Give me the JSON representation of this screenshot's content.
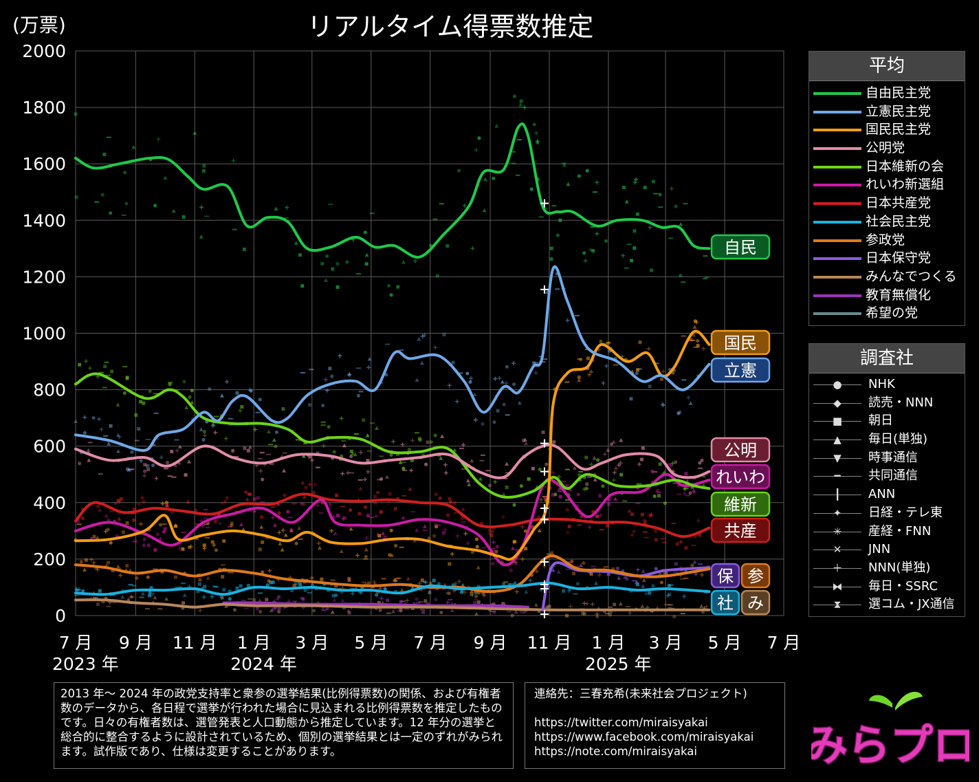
{
  "header": {
    "title": "リアルタイム得票数推定",
    "unit": "(万票)"
  },
  "chart_data": {
    "type": "line",
    "title": "リアルタイム得票数推定",
    "ylabel": "(万票)",
    "ylim": [
      0,
      2000
    ],
    "yticks": [
      0,
      200,
      400,
      600,
      800,
      1000,
      1200,
      1400,
      1600,
      1800,
      2000
    ],
    "xlim": [
      "2023-07-01",
      "2025-07-01"
    ],
    "xticks": [
      {
        "date": "2023-07-01",
        "label": "7 月",
        "year": "2023 年"
      },
      {
        "date": "2023-09-01",
        "label": "9 月"
      },
      {
        "date": "2023-11-01",
        "label": "11 月"
      },
      {
        "date": "2024-01-01",
        "label": "1 月",
        "year": "2024 年"
      },
      {
        "date": "2024-03-01",
        "label": "3 月"
      },
      {
        "date": "2024-05-01",
        "label": "5 月"
      },
      {
        "date": "2024-07-01",
        "label": "7 月"
      },
      {
        "date": "2024-09-01",
        "label": "9 月"
      },
      {
        "date": "2024-11-01",
        "label": "11 月"
      },
      {
        "date": "2025-01-01",
        "label": "1 月",
        "year": "2025 年"
      },
      {
        "date": "2025-03-01",
        "label": "3 月"
      },
      {
        "date": "2025-05-01",
        "label": "5 月"
      },
      {
        "date": "2025-07-01",
        "label": "7 月"
      }
    ],
    "grid": true,
    "legend_position": "right",
    "series": [
      {
        "name": "自由民主党",
        "tag": "自民",
        "color": "#1fc94a",
        "x": [
          "2023-07-01",
          "2023-07-20",
          "2023-08-15",
          "2023-09-15",
          "2023-10-05",
          "2023-10-25",
          "2023-11-10",
          "2023-12-05",
          "2023-12-25",
          "2024-01-15",
          "2024-02-05",
          "2024-02-25",
          "2024-03-20",
          "2024-04-15",
          "2024-05-05",
          "2024-05-25",
          "2024-06-20",
          "2024-07-15",
          "2024-08-10",
          "2024-08-25",
          "2024-09-15",
          "2024-09-30",
          "2024-10-10",
          "2024-10-25",
          "2024-11-10",
          "2024-11-25",
          "2024-12-20",
          "2025-01-10",
          "2025-02-05",
          "2025-02-25",
          "2025-03-15",
          "2025-03-30",
          "2025-04-15"
        ],
        "y": [
          1620,
          1585,
          1600,
          1620,
          1615,
          1555,
          1510,
          1520,
          1380,
          1410,
          1395,
          1300,
          1305,
          1340,
          1305,
          1310,
          1270,
          1350,
          1450,
          1570,
          1580,
          1730,
          1700,
          1450,
          1430,
          1430,
          1380,
          1400,
          1400,
          1375,
          1375,
          1310,
          1300
        ]
      },
      {
        "name": "立憲民主党",
        "tag": "立憲",
        "color": "#6fa8e8",
        "x": [
          "2023-07-01",
          "2023-08-05",
          "2023-09-10",
          "2023-09-25",
          "2023-10-20",
          "2023-11-10",
          "2023-11-25",
          "2023-12-10",
          "2023-12-25",
          "2024-01-20",
          "2024-02-05",
          "2024-02-25",
          "2024-03-20",
          "2024-04-15",
          "2024-05-05",
          "2024-05-25",
          "2024-06-10",
          "2024-07-10",
          "2024-08-05",
          "2024-08-25",
          "2024-09-15",
          "2024-09-30",
          "2024-10-15",
          "2024-10-25",
          "2024-11-05",
          "2024-11-20",
          "2024-12-10",
          "2025-01-10",
          "2025-02-05",
          "2025-02-25",
          "2025-03-20",
          "2025-04-15"
        ],
        "y": [
          640,
          620,
          585,
          640,
          660,
          720,
          690,
          760,
          775,
          690,
          700,
          780,
          820,
          830,
          800,
          930,
          910,
          920,
          830,
          720,
          810,
          790,
          880,
          920,
          1230,
          1110,
          950,
          900,
          830,
          850,
          800,
          890
        ]
      },
      {
        "name": "国民民主党",
        "tag": "国民",
        "color": "#f39c12",
        "x": [
          "2023-07-01",
          "2023-08-05",
          "2023-09-10",
          "2023-10-01",
          "2023-10-15",
          "2023-11-10",
          "2023-12-10",
          "2024-01-10",
          "2024-02-05",
          "2024-02-25",
          "2024-03-20",
          "2024-04-20",
          "2024-05-20",
          "2024-06-20",
          "2024-07-20",
          "2024-08-20",
          "2024-09-10",
          "2024-09-25",
          "2024-10-15",
          "2024-10-30",
          "2024-11-05",
          "2024-11-20",
          "2024-12-10",
          "2024-12-25",
          "2025-01-20",
          "2025-02-10",
          "2025-02-25",
          "2025-03-10",
          "2025-03-30",
          "2025-04-15"
        ],
        "y": [
          265,
          270,
          300,
          355,
          270,
          285,
          300,
          285,
          265,
          295,
          260,
          255,
          270,
          270,
          245,
          230,
          210,
          205,
          300,
          400,
          750,
          860,
          880,
          960,
          900,
          930,
          850,
          880,
          1005,
          960
        ]
      },
      {
        "name": "公明党",
        "tag": "公明",
        "color": "#e28ca8",
        "x": [
          "2023-07-01",
          "2023-08-05",
          "2023-09-10",
          "2023-10-05",
          "2023-11-10",
          "2023-12-10",
          "2024-01-10",
          "2024-02-15",
          "2024-03-20",
          "2024-04-20",
          "2024-05-20",
          "2024-06-20",
          "2024-07-20",
          "2024-08-20",
          "2024-09-15",
          "2024-10-05",
          "2024-10-25",
          "2024-11-10",
          "2024-12-05",
          "2024-12-25",
          "2025-01-20",
          "2025-02-20",
          "2025-03-10",
          "2025-03-30",
          "2025-04-15"
        ],
        "y": [
          590,
          550,
          560,
          530,
          600,
          560,
          540,
          570,
          565,
          540,
          550,
          560,
          570,
          510,
          490,
          560,
          600,
          595,
          520,
          540,
          570,
          565,
          500,
          490,
          510
        ]
      },
      {
        "name": "日本維新の会",
        "tag": "維新",
        "color": "#6bd417",
        "x": [
          "2023-07-01",
          "2023-07-25",
          "2023-09-10",
          "2023-10-05",
          "2023-10-20",
          "2023-11-10",
          "2023-12-10",
          "2024-01-10",
          "2024-02-05",
          "2024-02-25",
          "2024-03-20",
          "2024-04-20",
          "2024-05-20",
          "2024-06-20",
          "2024-07-20",
          "2024-08-20",
          "2024-09-15",
          "2024-10-15",
          "2024-11-05",
          "2024-11-20",
          "2024-12-10",
          "2025-01-10",
          "2025-02-10",
          "2025-03-10",
          "2025-03-30",
          "2025-04-15"
        ],
        "y": [
          820,
          855,
          770,
          800,
          775,
          700,
          680,
          680,
          660,
          615,
          630,
          625,
          580,
          580,
          590,
          470,
          420,
          440,
          490,
          450,
          500,
          460,
          460,
          480,
          460,
          450
        ]
      },
      {
        "name": "れいわ新選組",
        "tag": "れいわ",
        "color": "#cc1aa6",
        "x": [
          "2023-07-01",
          "2023-08-05",
          "2023-09-10",
          "2023-10-10",
          "2023-11-10",
          "2023-12-10",
          "2024-01-10",
          "2024-02-10",
          "2024-03-10",
          "2024-03-25",
          "2024-04-20",
          "2024-05-20",
          "2024-06-20",
          "2024-07-20",
          "2024-08-20",
          "2024-09-15",
          "2024-10-05",
          "2024-10-25",
          "2024-11-10",
          "2024-12-10",
          "2025-01-05",
          "2025-02-05",
          "2025-03-01",
          "2025-03-20",
          "2025-04-15"
        ],
        "y": [
          300,
          330,
          290,
          250,
          330,
          360,
          380,
          330,
          410,
          330,
          320,
          320,
          340,
          330,
          285,
          180,
          250,
          460,
          465,
          350,
          430,
          440,
          500,
          460,
          480
        ]
      },
      {
        "name": "日本共産党",
        "tag": "共産",
        "color": "#d11e1e",
        "x": [
          "2023-07-01",
          "2023-07-20",
          "2023-08-20",
          "2023-09-20",
          "2023-10-20",
          "2023-11-20",
          "2023-12-20",
          "2024-01-20",
          "2024-02-20",
          "2024-03-20",
          "2024-04-20",
          "2024-05-20",
          "2024-06-20",
          "2024-07-20",
          "2024-08-20",
          "2024-09-20",
          "2024-10-20",
          "2024-11-20",
          "2024-12-20",
          "2025-01-20",
          "2025-02-20",
          "2025-03-20",
          "2025-04-15"
        ],
        "y": [
          335,
          400,
          365,
          380,
          370,
          360,
          395,
          395,
          430,
          410,
          405,
          410,
          400,
          390,
          320,
          320,
          340,
          340,
          330,
          330,
          310,
          280,
          310
        ]
      },
      {
        "name": "社会民主党",
        "tag": "社",
        "color": "#1ab2e0",
        "x": [
          "2023-07-01",
          "2023-08-01",
          "2023-09-01",
          "2023-10-01",
          "2023-11-01",
          "2023-12-01",
          "2024-01-01",
          "2024-02-01",
          "2024-03-01",
          "2024-04-01",
          "2024-05-01",
          "2024-06-01",
          "2024-07-01",
          "2024-08-01",
          "2024-09-01",
          "2024-10-01",
          "2024-11-01",
          "2024-12-01",
          "2025-01-01",
          "2025-02-01",
          "2025-03-01",
          "2025-04-15"
        ],
        "y": [
          80,
          75,
          90,
          90,
          95,
          75,
          100,
          95,
          100,
          90,
          90,
          80,
          105,
          95,
          100,
          105,
          115,
          95,
          100,
          90,
          95,
          85
        ]
      },
      {
        "name": "参政党",
        "tag": "参",
        "color": "#e07a1a",
        "x": [
          "2023-07-01",
          "2023-08-01",
          "2023-09-01",
          "2023-10-01",
          "2023-11-01",
          "2023-12-01",
          "2024-01-01",
          "2024-02-01",
          "2024-03-01",
          "2024-04-01",
          "2024-05-01",
          "2024-06-01",
          "2024-07-01",
          "2024-08-01",
          "2024-09-01",
          "2024-10-01",
          "2024-11-01",
          "2024-12-01",
          "2025-01-01",
          "2025-02-01",
          "2025-03-01",
          "2025-04-15"
        ],
        "y": [
          180,
          170,
          150,
          160,
          140,
          160,
          150,
          130,
          120,
          110,
          105,
          110,
          100,
          100,
          85,
          110,
          210,
          165,
          160,
          140,
          140,
          165
        ]
      },
      {
        "name": "日本保守党",
        "tag": "保",
        "color": "#8b5ce0",
        "x": [
          "2024-10-25",
          "2024-11-05",
          "2024-12-01",
          "2025-01-01",
          "2025-02-01",
          "2025-03-01",
          "2025-04-15"
        ],
        "y": [
          20,
          180,
          160,
          155,
          140,
          160,
          170
        ]
      },
      {
        "name": "みんなでつくる",
        "tag": "み",
        "color": "#b8875a",
        "x": [
          "2023-07-01",
          "2023-08-01",
          "2023-09-01",
          "2023-10-01",
          "2023-11-01",
          "2023-12-01",
          "2024-01-01",
          "2024-03-01",
          "2024-05-01",
          "2024-07-01",
          "2024-09-01",
          "2024-11-01",
          "2025-01-01",
          "2025-03-01",
          "2025-04-15"
        ],
        "y": [
          55,
          55,
          45,
          40,
          30,
          40,
          35,
          35,
          30,
          30,
          25,
          20,
          20,
          20,
          20
        ]
      },
      {
        "name": "教育無償化",
        "tag": "",
        "color": "#9b34b8",
        "x": [
          "2023-12-01",
          "2024-01-01",
          "2024-03-01",
          "2024-05-01",
          "2024-07-01",
          "2024-09-01",
          "2024-10-10"
        ],
        "y": [
          45,
          45,
          40,
          40,
          35,
          35,
          30
        ]
      },
      {
        "name": "希望の党",
        "tag": "",
        "color": "#6a8a8e",
        "x": [],
        "y": []
      }
    ],
    "institutes": [
      {
        "name": "NHK",
        "marker": "●"
      },
      {
        "name": "読売・NNN",
        "marker": "◆"
      },
      {
        "name": "朝日",
        "marker": "■"
      },
      {
        "name": "毎日(単独)",
        "marker": "▲"
      },
      {
        "name": "時事通信",
        "marker": "▼"
      },
      {
        "name": "共同通信",
        "marker": "━"
      },
      {
        "name": "ANN",
        "marker": "┃"
      },
      {
        "name": "日経・テレ東",
        "marker": "✦"
      },
      {
        "name": "産経・FNN",
        "marker": "✳"
      },
      {
        "name": "JNN",
        "marker": "✕"
      },
      {
        "name": "NNN(単独)",
        "marker": "＋"
      },
      {
        "name": "毎日・SSRC",
        "marker": "⧓"
      },
      {
        "name": "選コム・JX通信",
        "marker": "⧗"
      }
    ]
  },
  "legend": {
    "avg_title": "平均",
    "inst_title": "調査社"
  },
  "notes": {
    "method": "2013 年～ 2024 年の政党支持率と衆参の選挙結果(比例得票数)の関係、および有権者数のデータから、各日程で選挙が行われた場合に見込まれる比例得票数を推定したものです。日々の有権者数は、選管発表と人口動態から推定しています。12 年分の選挙と総合的に整合するように設計されているため、個別の選挙結果とは一定のずれがみられます。試作版であり、仕様は変更することがあります。",
    "contact_title": "連絡先：三春充希(未来社会プロジェクト)",
    "links": [
      "https://twitter.com/miraisyakai",
      "https://www.facebook.com/miraisyakai",
      "https://note.com/miraisyakai"
    ]
  },
  "logo": {
    "text": "みらプロ"
  }
}
